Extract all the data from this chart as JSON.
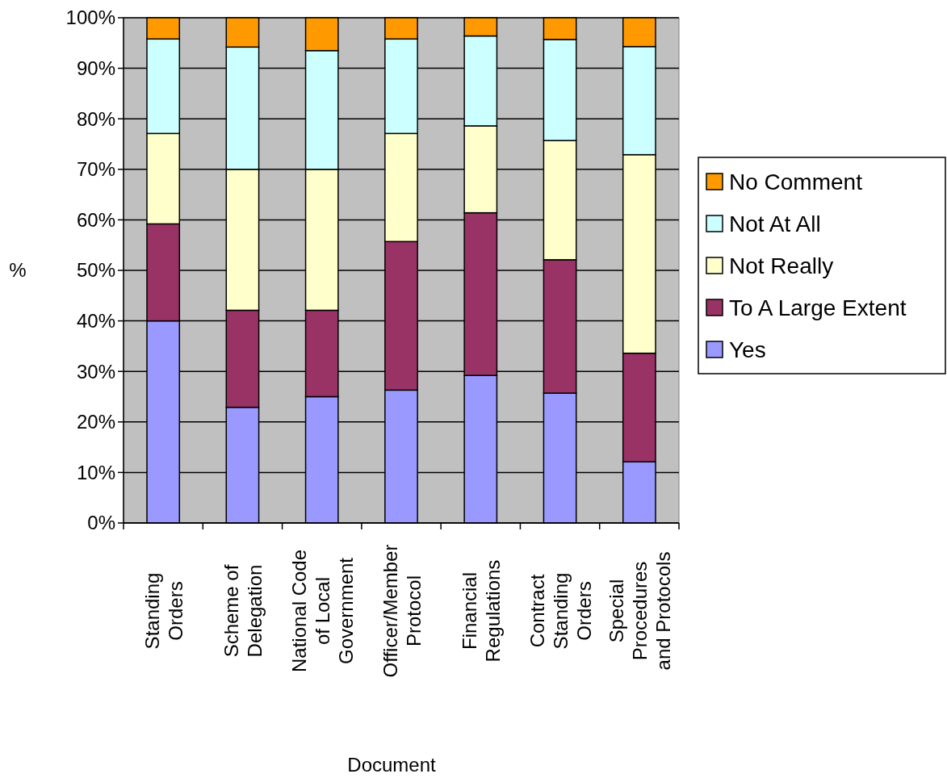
{
  "chart_data": {
    "type": "bar",
    "stacked": true,
    "xlabel": "Document",
    "ylabel": "%",
    "categories": [
      "Standing Orders",
      "Scheme of Delegation",
      "National Code of Local Government",
      "Officer/Member Protocol",
      "Financial Regulations",
      "Contract Standing Orders",
      "Special Procedures and Protocols"
    ],
    "series": [
      {
        "name": "Yes",
        "color": "#9999ff",
        "values": [
          40,
          22.9,
          25,
          26.3,
          29.2,
          25.7,
          12.1
        ]
      },
      {
        "name": "To A Large Extent",
        "color": "#993366",
        "values": [
          19.2,
          19.2,
          17.1,
          29.4,
          32.2,
          26.4,
          21.5
        ]
      },
      {
        "name": "Not Really",
        "color": "#ffffcc",
        "values": [
          17.9,
          27.9,
          27.9,
          21.4,
          17.2,
          23.6,
          39.3
        ]
      },
      {
        "name": "Not At All",
        "color": "#ccffff",
        "values": [
          18.7,
          24.2,
          23.5,
          18.7,
          17.8,
          20,
          21.4
        ]
      },
      {
        "name": "No Comment",
        "color": "#ff9900",
        "values": [
          4.2,
          5.8,
          6.5,
          4.2,
          3.6,
          4.3,
          5.7
        ]
      }
    ],
    "ylim": [
      0,
      100
    ],
    "yticks": [
      {
        "value": 0,
        "label": "0%"
      },
      {
        "value": 10,
        "label": "10%"
      },
      {
        "value": 20,
        "label": "20%"
      },
      {
        "value": 30,
        "label": "30%"
      },
      {
        "value": 40,
        "label": "40%"
      },
      {
        "value": 50,
        "label": "50%"
      },
      {
        "value": 60,
        "label": "60%"
      },
      {
        "value": 70,
        "label": "70%"
      },
      {
        "value": 80,
        "label": "80%"
      },
      {
        "value": 90,
        "label": "90%"
      },
      {
        "value": 100,
        "label": "100%"
      }
    ],
    "grid": "y",
    "legend": "right"
  }
}
